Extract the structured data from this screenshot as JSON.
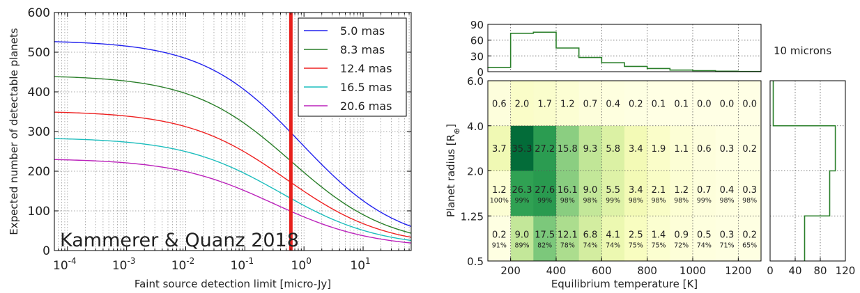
{
  "chart_data": [
    {
      "type": "line",
      "xlabel": "Faint source detection limit [micro-Jy]",
      "ylabel": "Expected number of detectable planets",
      "xscale": "log",
      "xlim": [
        6e-05,
        65
      ],
      "ylim": [
        0,
        600
      ],
      "yticks": [
        0,
        100,
        200,
        300,
        400,
        500,
        600
      ],
      "xticks": [
        {
          "v": 0.0001,
          "m": "10",
          "e": "-4"
        },
        {
          "v": 0.001,
          "m": "10",
          "e": "-3"
        },
        {
          "v": 0.01,
          "m": "10",
          "e": "-2"
        },
        {
          "v": 0.1,
          "m": "10",
          "e": "-1"
        },
        {
          "v": 1,
          "m": "10",
          "e": "0"
        },
        {
          "v": 10,
          "m": "10",
          "e": "1"
        }
      ],
      "grid": true,
      "legend_position": "top-right",
      "annotation": "Kammerer & Quanz 2018",
      "vertical_line": {
        "x": 0.6,
        "color": "#e8201c"
      },
      "series": [
        {
          "name": "5.0 mas",
          "color": "#2222ee",
          "max": 530,
          "x50": 0.9,
          "slope": 0.52,
          "floor": 10
        },
        {
          "name": "8.3 mas",
          "color": "#2a7f2a",
          "max": 442,
          "x50": 0.6,
          "slope": 0.52,
          "floor": 9
        },
        {
          "name": "12.4 mas",
          "color": "#ee2222",
          "max": 352,
          "x50": 0.5,
          "slope": 0.52,
          "floor": 8
        },
        {
          "name": "16.5 mas",
          "color": "#1cbdbd",
          "max": 285,
          "x50": 0.4,
          "slope": 0.52,
          "floor": 7
        },
        {
          "name": "20.6 mas",
          "color": "#bb22bb",
          "max": 232,
          "x50": 0.3,
          "slope": 0.52,
          "floor": 6
        }
      ]
    },
    {
      "type": "heatmap",
      "xlabel": "Equilibrium temperature [K]",
      "ylabel": "Planet radius [R",
      "ylabel_sub": "⊕",
      "ylabel_end": "]",
      "title_right": "10 microns",
      "x_edges": [
        100,
        200,
        300,
        400,
        500,
        600,
        700,
        800,
        900,
        1000,
        1100,
        1200,
        1300
      ],
      "x_ticks": [
        200,
        400,
        600,
        800,
        1000,
        1200
      ],
      "y_labels": [
        "6.0",
        "4.0",
        "2.0",
        "1.25",
        "0.5"
      ],
      "rows": [
        {
          "values": [
            "0.6",
            "2.0",
            "1.7",
            "1.2",
            "0.7",
            "0.4",
            "0.2",
            "0.1",
            "0.1",
            "0.0",
            "0.0",
            "0.0"
          ],
          "pct": []
        },
        {
          "values": [
            "3.7",
            "35.3",
            "27.2",
            "15.8",
            "9.3",
            "5.8",
            "3.4",
            "1.9",
            "1.1",
            "0.6",
            "0.3",
            "0.2"
          ],
          "pct": []
        },
        {
          "values": [
            "1.2",
            "26.3",
            "27.6",
            "16.1",
            "9.0",
            "5.5",
            "3.4",
            "2.1",
            "1.2",
            "0.7",
            "0.4",
            "0.3"
          ],
          "pct": [
            "100%",
            "99%",
            "99%",
            "98%",
            "98%",
            "99%",
            "98%",
            "98%",
            "98%",
            "99%",
            "98%",
            "98%"
          ]
        },
        {
          "values": [
            "0.2",
            "9.0",
            "17.5",
            "12.1",
            "6.8",
            "4.1",
            "2.5",
            "1.4",
            "0.9",
            "0.5",
            "0.3",
            "0.2"
          ],
          "pct": [
            "91%",
            "89%",
            "82%",
            "78%",
            "74%",
            "74%",
            "75%",
            "75%",
            "72%",
            "74%",
            "71%",
            "65%"
          ]
        }
      ],
      "top_hist": {
        "values": [
          8,
          73,
          75,
          45,
          27,
          17,
          10,
          6,
          3,
          2,
          1,
          0.5
        ],
        "ylim": [
          0,
          90
        ],
        "yticks": [
          0,
          30,
          60,
          90
        ]
      },
      "right_hist": {
        "values": [
          5,
          104,
          95,
          55
        ],
        "xlim": [
          0,
          120
        ],
        "xticks": [
          0,
          40,
          80,
          120
        ]
      },
      "color": "#2a7f2a"
    }
  ]
}
